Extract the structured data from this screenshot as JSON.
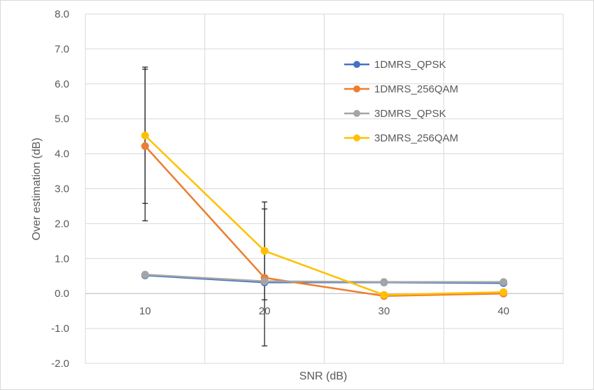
{
  "chart_data": {
    "type": "line",
    "title": "",
    "xlabel": "SNR (dB)",
    "ylabel": "Over estimation (dB)",
    "categories": [
      "10",
      "20",
      "30",
      "40"
    ],
    "ylim": [
      -2.0,
      8.0
    ],
    "y_ticks": [
      "-2.0",
      "-1.0",
      "0.0",
      "1.0",
      "2.0",
      "3.0",
      "4.0",
      "5.0",
      "6.0",
      "7.0",
      "8.0"
    ],
    "grid": true,
    "legend_position": "top-right",
    "series": [
      {
        "name": "1DMRS_QPSK",
        "color": "#4472c4",
        "values": [
          0.52,
          0.32,
          0.32,
          0.3
        ]
      },
      {
        "name": "1DMRS_256QAM",
        "color": "#ed7d31",
        "values": [
          4.22,
          0.45,
          -0.07,
          0.0
        ],
        "error_low": [
          2.08,
          -1.5,
          -0.08,
          -0.01
        ],
        "error_high": [
          6.42,
          2.42,
          -0.05,
          0.02
        ]
      },
      {
        "name": "3DMRS_QPSK",
        "color": "#a5a5a5",
        "values": [
          0.54,
          0.35,
          0.33,
          0.33
        ]
      },
      {
        "name": "3DMRS_256QAM",
        "color": "#ffc000",
        "values": [
          4.52,
          1.22,
          -0.04,
          0.04
        ],
        "error_low": [
          2.58,
          -0.18,
          -0.06,
          0.02
        ],
        "error_high": [
          6.48,
          2.62,
          -0.02,
          0.06
        ]
      }
    ]
  }
}
